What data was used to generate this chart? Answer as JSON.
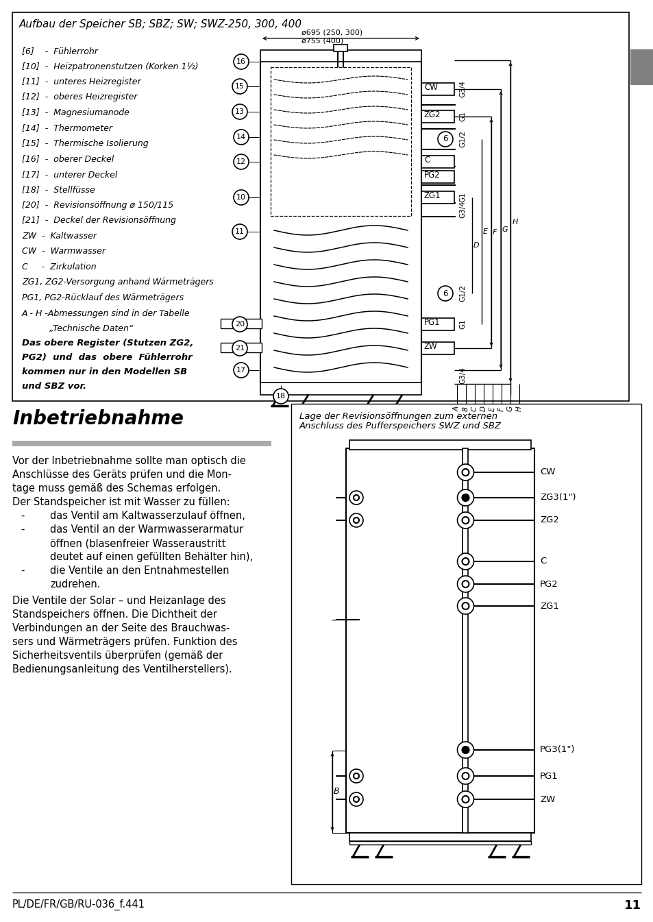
{
  "page_bg": "#ffffff",
  "top_box_title": "Aufbau der Speicher SB; SBZ; SW; SWZ-250, 300, 400",
  "legend": [
    "[6]    -  Fühlerrohr",
    "[10]  -  Heizpatronenstutzen (Korken 1½)",
    "[11]  -  unteres Heizregister",
    "[12]  -  oberes Heizregister",
    "[13]  -  Magnesiumanode",
    "[14]  -  Thermometer",
    "[15]  -  Thermische Isolierung",
    "[16]  -  oberer Deckel",
    "[17]  -  unterer Deckel",
    "[18]  -  Stellfüsse",
    "[20]  -  Revisionsöffnung ø 150/115",
    "[21]  -  Deckel der Revisionsöffnung",
    "ZW  -  Kaltwasser",
    "CW  -  Warmwasser",
    "C     -  Zirkulation",
    "ZG1, ZG2-Versorgung anhand Wärmeträgers",
    "PG1, PG2-Rücklauf des Wärmeträgers",
    "A - H -Abmessungen sind in der Tabelle",
    "          „Technische Daten“"
  ],
  "bold_note_lines": [
    "Das obere Register (Stutzen ZG2,",
    "PG2)  und  das  obere  Fühlerrohr",
    "kommen nur in den Modellen SB",
    "und SBZ vor."
  ],
  "section_heading": "Inbetriebnahme",
  "gray_color": "#aaaaaa",
  "intro_lines": [
    "Vor der Inbetriebnahme sollte man optisch die",
    "Anschlüsse des Geräts prüfen und die Mon-",
    "tage muss gemäß des Schemas erfolgen.",
    "Der Standspeicher ist mit Wasser zu füllen:"
  ],
  "bullet_lines": [
    [
      "-",
      "das Ventil am Kaltwasserzulauf öffnen,"
    ],
    [
      "-",
      "das Ventil an der Warmwasserarmatur"
    ],
    [
      "",
      "öffnen (blasenfreier Wasseraustritt"
    ],
    [
      "",
      "deutet auf einen gefüllten Behälter hin),"
    ],
    [
      "-",
      "die Ventile an den Entnahmestellen"
    ],
    [
      "",
      "zudrehen."
    ]
  ],
  "outro_lines": [
    "Die Ventile der Solar – und Heizanlage des",
    "Standspeichers öffnen. Die Dichtheit der",
    "Verbindungen an der Seite des Brauchwas-",
    "sers und Wärmeträgers prüfen. Funktion des",
    "Sicherheitsventils überprüfen (gemäß der",
    "Bedienungsanleitung des Ventilherstellers)."
  ],
  "rp_title1": "Lage der Revisionsöffnungen zum externen",
  "rp_title2": "Anschluss des Pufferspeichers SWZ und SBZ",
  "footer_left": "PL/DE/FR/GB/RU-036_f.441",
  "footer_page": "11",
  "de_color": "#808080"
}
